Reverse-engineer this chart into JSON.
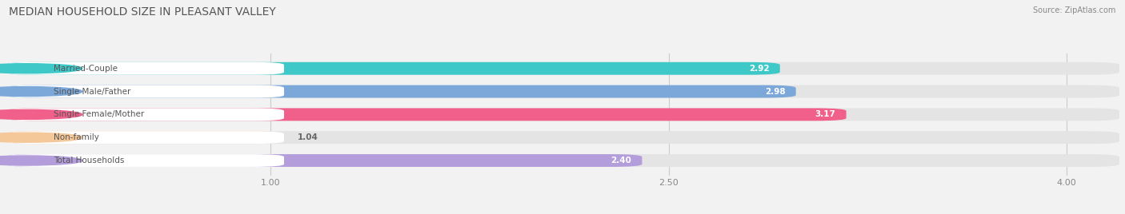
{
  "title": "MEDIAN HOUSEHOLD SIZE IN PLEASANT VALLEY",
  "source": "Source: ZipAtlas.com",
  "categories": [
    "Married-Couple",
    "Single Male/Father",
    "Single Female/Mother",
    "Non-family",
    "Total Households"
  ],
  "values": [
    2.92,
    2.98,
    3.17,
    1.04,
    2.4
  ],
  "bar_colors": [
    "#3ec8c8",
    "#7ba7d9",
    "#f0608a",
    "#f5c89a",
    "#b39ddb"
  ],
  "label_dot_colors": [
    "#3ec8c8",
    "#7ba7d9",
    "#f0608a",
    "#f5c89a",
    "#b39ddb"
  ],
  "xlim_data": [
    0.0,
    4.2
  ],
  "xstart": 0.0,
  "xticks": [
    1.0,
    2.5,
    4.0
  ],
  "xtick_labels": [
    "1.00",
    "2.50",
    "4.00"
  ],
  "bar_height": 0.55,
  "background_color": "#f2f2f2",
  "bar_bg_color": "#e4e4e4",
  "label_bg_color": "#ffffff",
  "title_fontsize": 10,
  "label_fontsize": 7.5,
  "value_fontsize": 7.5,
  "source_fontsize": 7
}
